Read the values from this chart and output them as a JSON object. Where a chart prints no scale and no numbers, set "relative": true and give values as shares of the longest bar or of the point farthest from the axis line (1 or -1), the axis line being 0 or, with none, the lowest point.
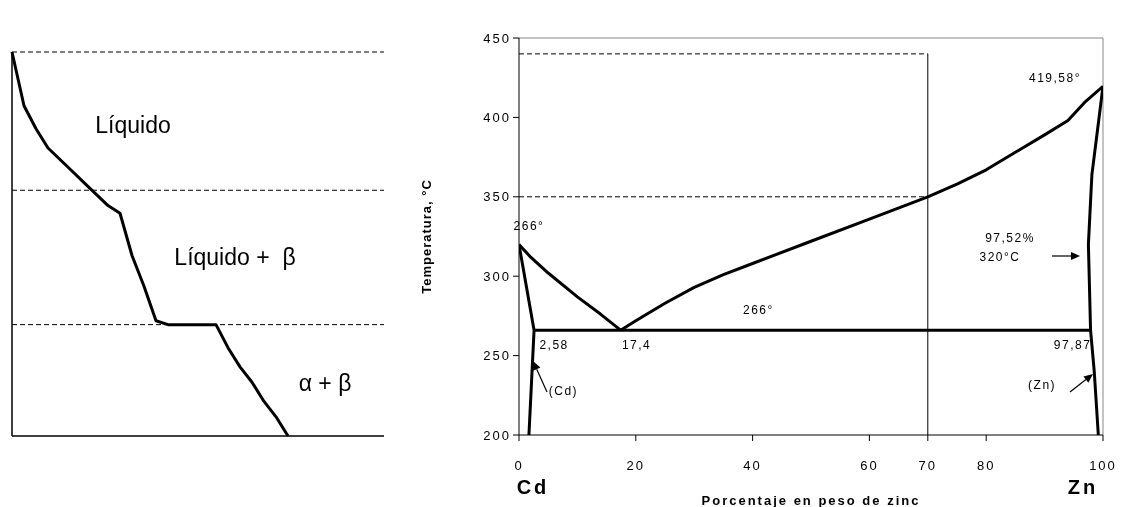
{
  "chart_data": [
    {
      "type": "line",
      "relative": true,
      "categories": [
        null,
        null,
        null,
        null,
        null,
        null,
        null,
        null,
        null,
        null,
        null,
        null,
        null,
        null,
        null,
        null,
        null,
        null,
        null,
        null,
        null,
        null,
        null,
        null,
        null,
        null,
        null,
        null,
        null,
        null,
        null,
        null
      ],
      "series": [
        {
          "color": "#000000",
          "values": [
            1,
            0.86,
            0.8,
            0.75,
            0.72,
            0.69,
            0.66,
            0.63,
            0.6,
            0.58,
            0.47,
            0.39,
            0.3,
            0.29,
            0.29,
            0.29,
            0.29,
            0.29,
            0.23,
            0.18,
            0.14,
            0.09,
            0.05,
            0,
            null,
            null,
            null,
            null,
            null,
            null,
            null,
            null
          ]
        }
      ],
      "ref_lines": [
        {
          "axis": "y",
          "value": 1,
          "line_style": "dashed"
        },
        {
          "axis": "y",
          "value": 0.64,
          "line_style": "dashed"
        },
        {
          "axis": "y",
          "value": 0.29,
          "line_style": "dashed"
        }
      ],
      "annotations": [
        "Líquido",
        "Líquido +  β",
        "α + β"
      ]
    },
    {
      "type": "line",
      "xlabel": "Porcentaje en peso de zinc",
      "ylabel": "Temperatura, °C",
      "xlim": [
        0,
        100
      ],
      "ylim": [
        200,
        450
      ],
      "xticks": [
        0,
        20,
        40,
        60,
        70,
        80,
        100
      ],
      "yticks": [
        200,
        250,
        300,
        350,
        400,
        450
      ],
      "series": [
        {
          "color": "#000000",
          "x": [
            0,
            2,
            5,
            10,
            14,
            17.4
          ],
          "values": [
            320,
            312,
            302,
            287,
            276,
            266
          ]
        },
        {
          "color": "#000000",
          "x": [
            17.4,
            20,
            25,
            30,
            35,
            40,
            50,
            60,
            70,
            75,
            80,
            85,
            90,
            94,
            97,
            100
          ],
          "values": [
            266,
            272,
            283,
            293,
            301,
            308,
            322,
            336,
            350,
            358,
            367,
            378,
            389,
            398,
            410,
            419.58
          ]
        },
        {
          "color": "#000000",
          "x": [
            2.58,
            97.87
          ],
          "values": [
            266,
            266
          ]
        },
        {
          "color": "#000000",
          "x": [
            0,
            2.58,
            1.7
          ],
          "values": [
            320,
            266,
            200
          ]
        },
        {
          "color": "#000000",
          "x": [
            100,
            98.1,
            97.5,
            97.87,
            98.5,
            99.2
          ],
          "values": [
            419.58,
            364,
            320,
            266,
            240,
            200
          ]
        }
      ],
      "ref_lines": [
        {
          "axis": "y",
          "value": 440,
          "line_style": "dashed"
        },
        {
          "axis": "y",
          "value": 350,
          "line_style": "dashed"
        },
        {
          "axis": "x",
          "value": 70,
          "line_style": "solid"
        }
      ],
      "annotations": [
        {
          "text": "266°",
          "x": 0,
          "y": 320
        },
        {
          "text": "419,58°",
          "x": 100,
          "y": 419.58
        },
        "97,52%",
        "320°C",
        {
          "text": "266°",
          "x": 41,
          "y": 266
        },
        {
          "text": "2,58",
          "x": 2.58,
          "y": 266
        },
        {
          "text": "17,4",
          "x": 17.4,
          "y": 266
        },
        {
          "text": "97,87",
          "x": 97.87,
          "y": 266
        },
        {
          "text": "(Cd)",
          "x": 2.3,
          "y": 248
        },
        {
          "text": "(Zn)",
          "x": 98.3,
          "y": 238
        },
        "Cd",
        "Zn"
      ]
    }
  ]
}
